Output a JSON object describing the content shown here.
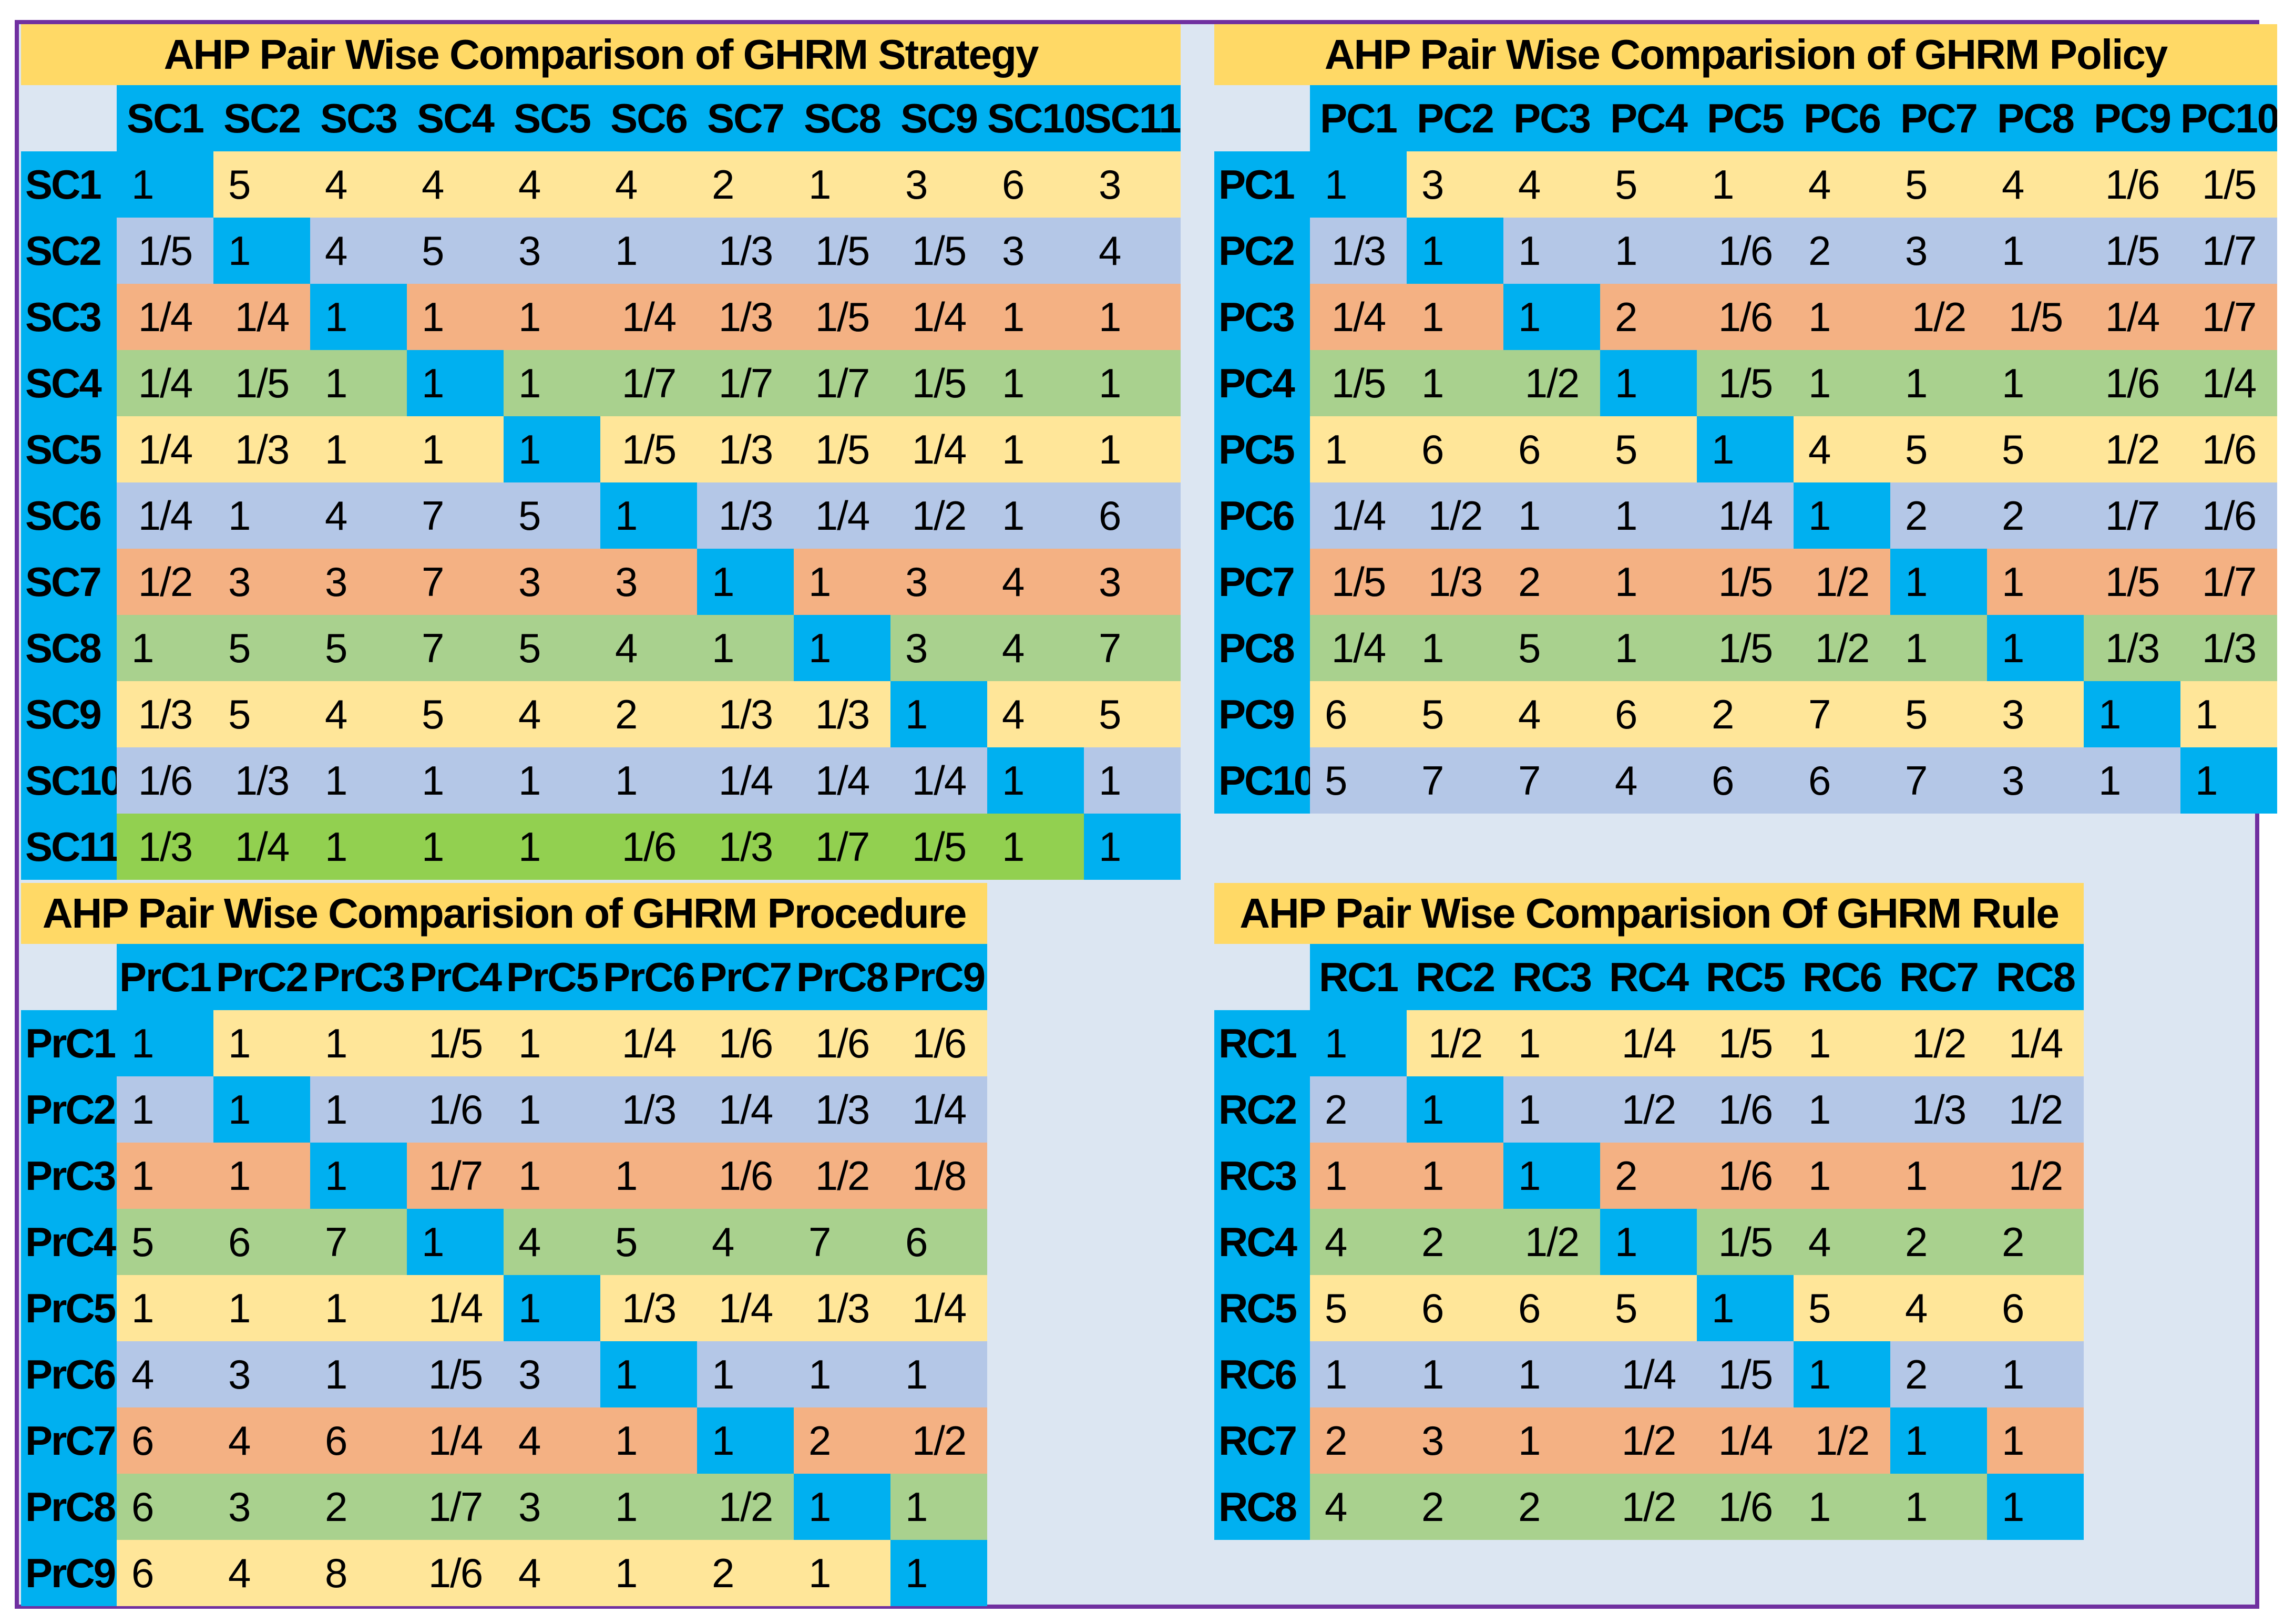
{
  "frame": {
    "border_color": "#7030A0",
    "background": "#DCE6F2"
  },
  "colors": {
    "title": "#FFD966",
    "header": "#00B0F0",
    "diagonal": "#00B0F0",
    "yellow": "#FFE699",
    "blue": "#B4C7E7",
    "orange": "#F4B183",
    "green": "#A9D18E",
    "lime": "#92D050"
  },
  "matrices": [
    {
      "id": "strategy",
      "title": "AHP Pair Wise Comparison of GHRM Strategy",
      "labels": [
        "SC1",
        "SC2",
        "SC3",
        "SC4",
        "SC5",
        "SC6",
        "SC7",
        "SC8",
        "SC9",
        "SC10",
        "SC11"
      ],
      "row_colors": [
        "yellow",
        "blue",
        "orange",
        "green",
        "yellow",
        "blue",
        "orange",
        "green",
        "yellow",
        "blue",
        "lime"
      ],
      "rows": [
        [
          "1",
          "5",
          "4",
          "4",
          "4",
          "4",
          "2",
          "1",
          "3",
          "6",
          "3"
        ],
        [
          "1/5",
          "1",
          "4",
          "5",
          "3",
          "1",
          "1/3",
          "1/5",
          "1/5",
          "3",
          "4"
        ],
        [
          "1/4",
          "1/4",
          "1",
          "1",
          "1",
          "1/4",
          "1/3",
          "1/5",
          "1/4",
          "1",
          "1"
        ],
        [
          "1/4",
          "1/5",
          "1",
          "1",
          "1",
          "1/7",
          "1/7",
          "1/7",
          "1/5",
          "1",
          "1"
        ],
        [
          "1/4",
          "1/3",
          "1",
          "1",
          "1",
          "1/5",
          "1/3",
          "1/5",
          "1/4",
          "1",
          "1"
        ],
        [
          "1/4",
          "1",
          "4",
          "7",
          "5",
          "1",
          "1/3",
          "1/4",
          "1/2",
          "1",
          "6"
        ],
        [
          "1/2",
          "3",
          "3",
          "7",
          "3",
          "3",
          "1",
          "1",
          "3",
          "4",
          "3"
        ],
        [
          "1",
          "5",
          "5",
          "7",
          "5",
          "4",
          "1",
          "1",
          "3",
          "4",
          "7"
        ],
        [
          "1/3",
          "5",
          "4",
          "5",
          "4",
          "2",
          "1/3",
          "1/3",
          "1",
          "4",
          "5"
        ],
        [
          "1/6",
          "1/3",
          "1",
          "1",
          "1",
          "1",
          "1/4",
          "1/4",
          "1/4",
          "1",
          "1"
        ],
        [
          "1/3",
          "1/4",
          "1",
          "1",
          "1",
          "1/6",
          "1/3",
          "1/7",
          "1/5",
          "1",
          "1"
        ]
      ]
    },
    {
      "id": "policy",
      "title": "AHP Pair Wise Comparision of GHRM Policy",
      "labels": [
        "PC1",
        "PC2",
        "PC3",
        "PC4",
        "PC5",
        "PC6",
        "PC7",
        "PC8",
        "PC9",
        "PC10"
      ],
      "row_colors": [
        "yellow",
        "blue",
        "orange",
        "green",
        "yellow",
        "blue",
        "orange",
        "green",
        "yellow",
        "blue"
      ],
      "rows": [
        [
          "1",
          "3",
          "4",
          "5",
          "1",
          "4",
          "5",
          "4",
          "1/6",
          "1/5"
        ],
        [
          "1/3",
          "1",
          "1",
          "1",
          "1/6",
          "2",
          "3",
          "1",
          "1/5",
          "1/7"
        ],
        [
          "1/4",
          "1",
          "1",
          "2",
          "1/6",
          "1",
          "1/2",
          "1/5",
          "1/4",
          "1/7"
        ],
        [
          "1/5",
          "1",
          "1/2",
          "1",
          "1/5",
          "1",
          "1",
          "1",
          "1/6",
          "1/4"
        ],
        [
          "1",
          "6",
          "6",
          "5",
          "1",
          "4",
          "5",
          "5",
          "1/2",
          "1/6"
        ],
        [
          "1/4",
          "1/2",
          "1",
          "1",
          "1/4",
          "1",
          "2",
          "2",
          "1/7",
          "1/6"
        ],
        [
          "1/5",
          "1/3",
          "2",
          "1",
          "1/5",
          "1/2",
          "1",
          "1",
          "1/5",
          "1/7"
        ],
        [
          "1/4",
          "1",
          "5",
          "1",
          "1/5",
          "1/2",
          "1",
          "1",
          "1/3",
          "1/3"
        ],
        [
          "6",
          "5",
          "4",
          "6",
          "2",
          "7",
          "5",
          "3",
          "1",
          "1"
        ],
        [
          "5",
          "7",
          "7",
          "4",
          "6",
          "6",
          "7",
          "3",
          "1",
          "1"
        ]
      ]
    },
    {
      "id": "procedure",
      "title": "AHP Pair Wise Comparision of GHRM Procedure",
      "labels": [
        "PrC1",
        "PrC2",
        "PrC3",
        "PrC4",
        "PrC5",
        "PrC6",
        "PrC7",
        "PrC8",
        "PrC9"
      ],
      "row_colors": [
        "yellow",
        "blue",
        "orange",
        "green",
        "yellow",
        "blue",
        "orange",
        "green",
        "yellow"
      ],
      "rows": [
        [
          "1",
          "1",
          "1",
          "1/5",
          "1",
          "1/4",
          "1/6",
          "1/6",
          "1/6"
        ],
        [
          "1",
          "1",
          "1",
          "1/6",
          "1",
          "1/3",
          "1/4",
          "1/3",
          "1/4"
        ],
        [
          "1",
          "1",
          "1",
          "1/7",
          "1",
          "1",
          "1/6",
          "1/2",
          "1/8"
        ],
        [
          "5",
          "6",
          "7",
          "1",
          "4",
          "5",
          "4",
          "7",
          "6"
        ],
        [
          "1",
          "1",
          "1",
          "1/4",
          "1",
          "1/3",
          "1/4",
          "1/3",
          "1/4"
        ],
        [
          "4",
          "3",
          "1",
          "1/5",
          "3",
          "1",
          "1",
          "1",
          "1"
        ],
        [
          "6",
          "4",
          "6",
          "1/4",
          "4",
          "1",
          "1",
          "2",
          "1/2"
        ],
        [
          "6",
          "3",
          "2",
          "1/7",
          "3",
          "1",
          "1/2",
          "1",
          "1"
        ],
        [
          "6",
          "4",
          "8",
          "1/6",
          "4",
          "1",
          "2",
          "1",
          "1"
        ]
      ]
    },
    {
      "id": "rule",
      "title": "AHP Pair Wise Comparision Of GHRM Rule",
      "labels": [
        "RC1",
        "RC2",
        "RC3",
        "RC4",
        "RC5",
        "RC6",
        "RC7",
        "RC8"
      ],
      "row_colors": [
        "yellow",
        "blue",
        "orange",
        "green",
        "yellow",
        "blue",
        "orange",
        "green"
      ],
      "rows": [
        [
          "1",
          "1/2",
          "1",
          "1/4",
          "1/5",
          "1",
          "1/2",
          "1/4"
        ],
        [
          "2",
          "1",
          "1",
          "1/2",
          "1/6",
          "1",
          "1/3",
          "1/2"
        ],
        [
          "1",
          "1",
          "1",
          "2",
          "1/6",
          "1",
          "1",
          "1/2"
        ],
        [
          "4",
          "2",
          "1/2",
          "1",
          "1/5",
          "4",
          "2",
          "2"
        ],
        [
          "5",
          "6",
          "6",
          "5",
          "1",
          "5",
          "4",
          "6"
        ],
        [
          "1",
          "1",
          "1",
          "1/4",
          "1/5",
          "1",
          "2",
          "1"
        ],
        [
          "2",
          "3",
          "1",
          "1/2",
          "1/4",
          "1/2",
          "1",
          "1"
        ],
        [
          "4",
          "2",
          "2",
          "1/2",
          "1/6",
          "1",
          "1",
          "1"
        ]
      ]
    }
  ]
}
